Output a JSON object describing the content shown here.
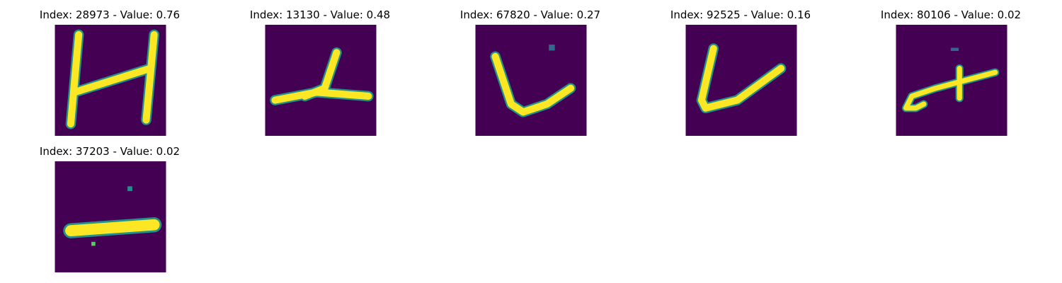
{
  "chart_data": {
    "type": "image-grid",
    "colormap": "viridis",
    "colors": {
      "background": "#440154",
      "stroke": "#fde725",
      "edge": "#21918c"
    },
    "panels": [
      {
        "title": "Index: 28973 - Value: 0.76",
        "index": 28973,
        "value": 0.76,
        "glyph": "H"
      },
      {
        "title": "Index: 13130 - Value: 0.48",
        "index": 13130,
        "value": 0.48,
        "glyph": "lambda"
      },
      {
        "title": "Index: 67820 - Value: 0.27",
        "index": 67820,
        "value": 0.27,
        "glyph": "V"
      },
      {
        "title": "Index: 92525 - Value: 0.16",
        "index": 92525,
        "value": 0.16,
        "glyph": "V"
      },
      {
        "title": "Index: 80106 - Value: 0.02",
        "index": 80106,
        "value": 0.02,
        "glyph": "cross-stroke"
      },
      {
        "title": "Index: 37203 - Value: 0.02",
        "index": 37203,
        "value": 0.02,
        "glyph": "dash"
      }
    ]
  }
}
